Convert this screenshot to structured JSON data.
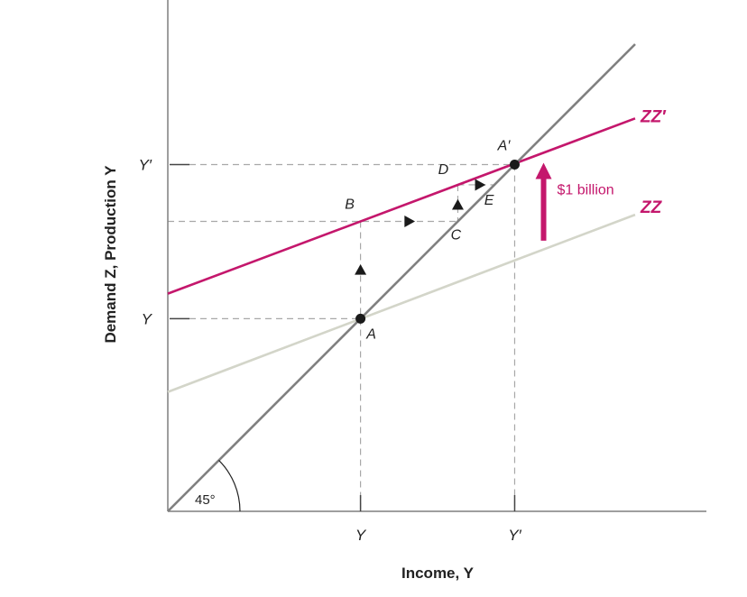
{
  "colors": {
    "magenta": "#c4176c",
    "zz": "#d3d5c9",
    "diag": "#808080",
    "axis": "#7f7f7f",
    "guide": "#a8a8a8",
    "text": "#222222",
    "point": "#1a1a1a"
  },
  "chart_data": {
    "type": "line",
    "xlabel": "Income, Y",
    "ylabel": "Demand Z, Production Y",
    "xlim": [
      0,
      10
    ],
    "ylim": [
      0,
      10
    ],
    "x_ticks": [
      {
        "value": 4,
        "label": "Y"
      },
      {
        "value": 7.2,
        "label": "Y′"
      }
    ],
    "y_ticks": [
      {
        "value": 4,
        "label": "Y"
      },
      {
        "value": 7.2,
        "label": "Y′"
      }
    ],
    "series": [
      {
        "name": "45°",
        "role": "diagonal",
        "points": [
          [
            0,
            0
          ],
          [
            9.7,
            9.7
          ]
        ],
        "label_printed": false
      },
      {
        "name": "ZZ",
        "role": "zz",
        "points": [
          [
            0,
            2.48
          ],
          [
            9.7,
            6.16
          ]
        ]
      },
      {
        "name": "ZZ′",
        "role": "zzp",
        "points": [
          [
            0,
            4.52
          ],
          [
            9.7,
            8.16
          ]
        ]
      }
    ],
    "points": [
      {
        "label": "A",
        "x": 4,
        "y": 4,
        "marker": true
      },
      {
        "label": "A′",
        "x": 7.2,
        "y": 7.2,
        "marker": true
      },
      {
        "label": "B",
        "x": 4,
        "y": 6.02,
        "marker": false
      },
      {
        "label": "C",
        "x": 6.02,
        "y": 6.02,
        "marker": false
      },
      {
        "label": "D",
        "x": 6.02,
        "y": 6.78,
        "marker": false
      },
      {
        "label": "E",
        "x": 6.78,
        "y": 6.78,
        "marker": false
      }
    ],
    "shift_annotation": {
      "label": "$1 billion",
      "direction": "up",
      "x": 7.8,
      "from_y": 5.62,
      "to_y": 7.2
    },
    "angle_label": "45°",
    "grid": false,
    "legend": "none"
  }
}
